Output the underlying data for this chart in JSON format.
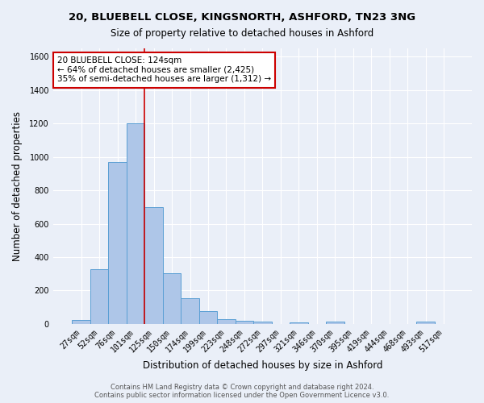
{
  "title1": "20, BLUEBELL CLOSE, KINGSNORTH, ASHFORD, TN23 3NG",
  "title2": "Size of property relative to detached houses in Ashford",
  "xlabel": "Distribution of detached houses by size in Ashford",
  "ylabel": "Number of detached properties",
  "footer1": "Contains HM Land Registry data © Crown copyright and database right 2024.",
  "footer2": "Contains public sector information licensed under the Open Government Licence v3.0.",
  "categories": [
    "27sqm",
    "52sqm",
    "76sqm",
    "101sqm",
    "125sqm",
    "150sqm",
    "174sqm",
    "199sqm",
    "223sqm",
    "248sqm",
    "272sqm",
    "297sqm",
    "321sqm",
    "346sqm",
    "370sqm",
    "395sqm",
    "419sqm",
    "444sqm",
    "468sqm",
    "493sqm",
    "517sqm"
  ],
  "values": [
    25,
    325,
    970,
    1200,
    700,
    305,
    155,
    75,
    30,
    20,
    13,
    0,
    10,
    0,
    13,
    0,
    0,
    0,
    0,
    12,
    0
  ],
  "bar_color": "#aec6e8",
  "bar_edge_color": "#5a9fd4",
  "background_color": "#eaeff8",
  "grid_color": "#ffffff",
  "annotation_line1": "20 BLUEBELL CLOSE: 124sqm",
  "annotation_line2": "← 64% of detached houses are smaller (2,425)",
  "annotation_line3": "35% of semi-detached houses are larger (1,312) →",
  "annotation_box_color": "#ffffff",
  "annotation_box_edge_color": "#cc0000",
  "vline_color": "#cc0000",
  "vline_x_index": 4,
  "ylim": [
    0,
    1650
  ],
  "yticks": [
    0,
    200,
    400,
    600,
    800,
    1000,
    1200,
    1400,
    1600
  ]
}
